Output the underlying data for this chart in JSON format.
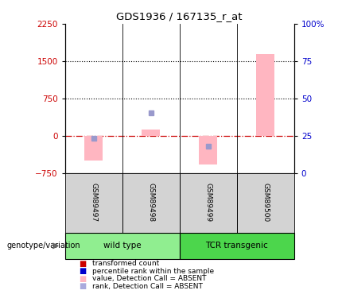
{
  "title": "GDS1936 / 167135_r_at",
  "samples": [
    "GSM89497",
    "GSM89498",
    "GSM89499",
    "GSM89500"
  ],
  "groups": [
    "wild type",
    "wild type",
    "TCR transgenic",
    "TCR transgenic"
  ],
  "pink_bar_values": [
    -500,
    120,
    -580,
    1650
  ],
  "blue_square_values": [
    -60,
    460,
    -210,
    null
  ],
  "ylim_left": [
    -750,
    2250
  ],
  "ylim_right": [
    0,
    100
  ],
  "yticks_left": [
    -750,
    0,
    750,
    1500,
    2250
  ],
  "yticks_right": [
    0,
    25,
    50,
    75,
    100
  ],
  "hlines": [
    750,
    1500
  ],
  "left_color": "#CC0000",
  "right_color": "#0000CC",
  "dashed_line_y": 0,
  "legend_labels": [
    "transformed count",
    "percentile rank within the sample",
    "value, Detection Call = ABSENT",
    "rank, Detection Call = ABSENT"
  ],
  "legend_colors": [
    "#CC0000",
    "#0000CC",
    "#FFB6C1",
    "#AAAADD"
  ],
  "genotype_label": "genotype/variation",
  "pink_bar_color": "#FFB6C1",
  "blue_square_color": "#9999CC",
  "bar_width": 0.32,
  "group_colors": {
    "wild type": "#90EE90",
    "TCR transgenic": "#4CD64C"
  }
}
